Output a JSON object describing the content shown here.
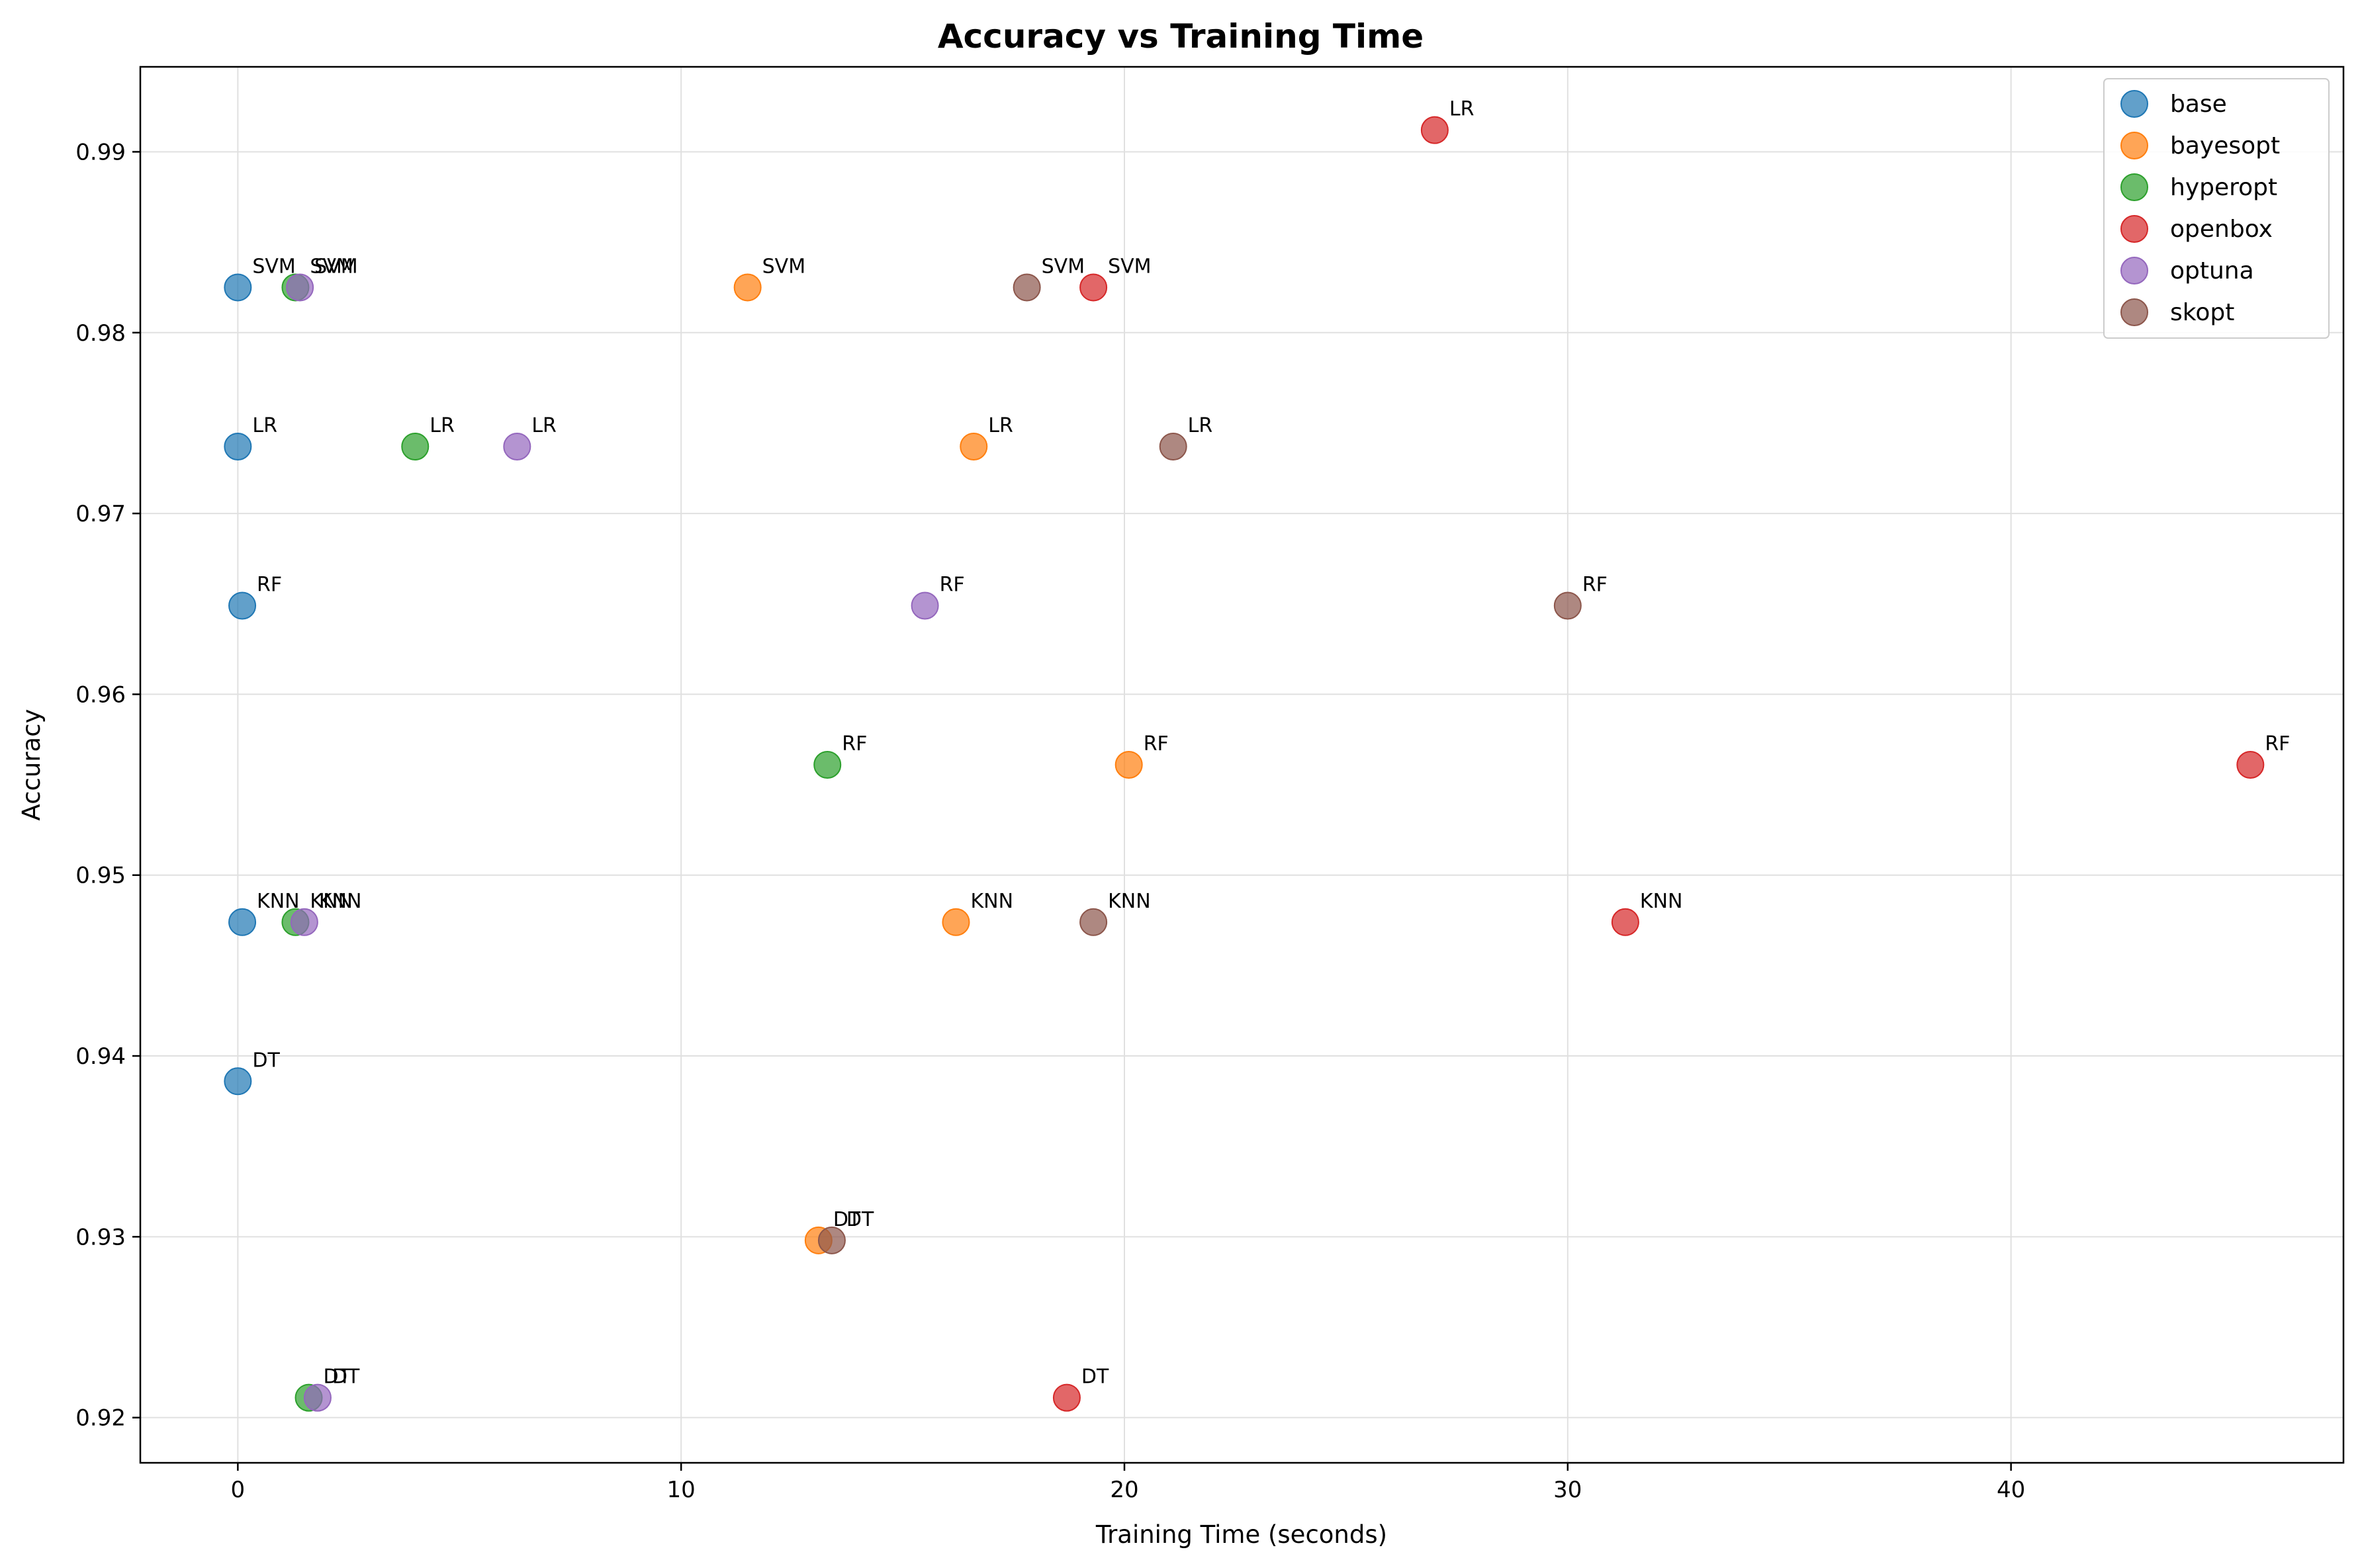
{
  "chart_data": {
    "type": "scatter",
    "title": "Accuracy vs Training Time",
    "xlabel": "Training Time (seconds)",
    "ylabel": "Accuracy",
    "xlim": [
      -2.2,
      47.5
    ],
    "ylim": [
      0.9175,
      0.9947
    ],
    "xticks": [
      0,
      10,
      20,
      30,
      40
    ],
    "xtick_labels": [
      "0",
      "10",
      "20",
      "30",
      "40"
    ],
    "yticks": [
      0.92,
      0.93,
      0.94,
      0.95,
      0.96,
      0.97,
      0.98,
      0.99
    ],
    "ytick_labels": [
      "0.92",
      "0.93",
      "0.94",
      "0.95",
      "0.96",
      "0.97",
      "0.98",
      "0.99"
    ],
    "grid": true,
    "legend_position": "top-right",
    "series": [
      {
        "name": "base",
        "color": "#1f77b4",
        "points": [
          {
            "label": "SVM",
            "x": 0.0,
            "y": 0.9825
          },
          {
            "label": "LR",
            "x": 0.0,
            "y": 0.9737
          },
          {
            "label": "RF",
            "x": 0.1,
            "y": 0.9649
          },
          {
            "label": "KNN",
            "x": 0.1,
            "y": 0.9474
          },
          {
            "label": "DT",
            "x": 0.0,
            "y": 0.9386
          }
        ]
      },
      {
        "name": "bayesopt",
        "color": "#ff7f0e",
        "points": [
          {
            "label": "SVM",
            "x": 11.5,
            "y": 0.9825
          },
          {
            "label": "LR",
            "x": 16.6,
            "y": 0.9737
          },
          {
            "label": "RF",
            "x": 20.1,
            "y": 0.9561
          },
          {
            "label": "KNN",
            "x": 16.2,
            "y": 0.9474
          },
          {
            "label": "DT",
            "x": 13.1,
            "y": 0.9298
          }
        ]
      },
      {
        "name": "hyperopt",
        "color": "#2ca02c",
        "points": [
          {
            "label": "SVM",
            "x": 1.3,
            "y": 0.9825
          },
          {
            "label": "LR",
            "x": 4.0,
            "y": 0.9737
          },
          {
            "label": "RF",
            "x": 13.3,
            "y": 0.9561
          },
          {
            "label": "KNN",
            "x": 1.3,
            "y": 0.9474
          },
          {
            "label": "DT",
            "x": 1.6,
            "y": 0.9211
          }
        ]
      },
      {
        "name": "openbox",
        "color": "#d62728",
        "points": [
          {
            "label": "SVM",
            "x": 19.3,
            "y": 0.9825
          },
          {
            "label": "LR",
            "x": 27.0,
            "y": 0.9912
          },
          {
            "label": "RF",
            "x": 45.4,
            "y": 0.9561
          },
          {
            "label": "KNN",
            "x": 31.3,
            "y": 0.9474
          },
          {
            "label": "DT",
            "x": 18.7,
            "y": 0.9211
          }
        ]
      },
      {
        "name": "optuna",
        "color": "#9467bd",
        "points": [
          {
            "label": "SVM",
            "x": 1.4,
            "y": 0.9825
          },
          {
            "label": "LR",
            "x": 6.3,
            "y": 0.9737
          },
          {
            "label": "RF",
            "x": 15.5,
            "y": 0.9649
          },
          {
            "label": "KNN",
            "x": 1.5,
            "y": 0.9474
          },
          {
            "label": "DT",
            "x": 1.8,
            "y": 0.9211
          }
        ]
      },
      {
        "name": "skopt",
        "color": "#8c564b",
        "points": [
          {
            "label": "SVM",
            "x": 17.8,
            "y": 0.9825
          },
          {
            "label": "LR",
            "x": 21.1,
            "y": 0.9737
          },
          {
            "label": "RF",
            "x": 30.0,
            "y": 0.9649
          },
          {
            "label": "KNN",
            "x": 19.3,
            "y": 0.9474
          },
          {
            "label": "DT",
            "x": 13.4,
            "y": 0.9298
          }
        ]
      }
    ]
  }
}
